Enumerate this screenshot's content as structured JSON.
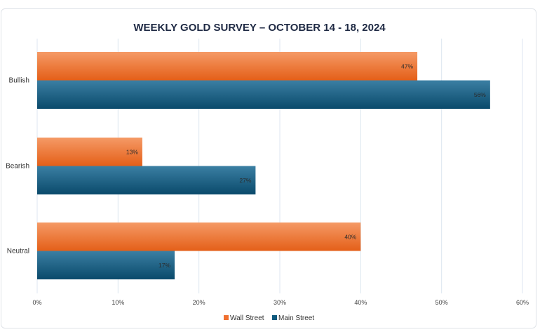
{
  "chart_data": {
    "type": "bar",
    "orientation": "horizontal",
    "title": "WEEKLY GOLD SURVEY – OCTOBER 14 - 18, 2024",
    "categories": [
      "Bullish",
      "Bearish",
      "Neutral"
    ],
    "series": [
      {
        "name": "Wall Street",
        "values": [
          47,
          13,
          40
        ],
        "color": "#f07030"
      },
      {
        "name": "Main Street",
        "values": [
          56,
          27,
          17
        ],
        "color": "#0f5a7e"
      }
    ],
    "data_labels": [
      [
        "47%",
        "13%",
        "40%"
      ],
      [
        "56%",
        "27%",
        "17%"
      ]
    ],
    "xlim": [
      0,
      60
    ],
    "xticks": [
      0,
      10,
      20,
      30,
      40,
      50,
      60
    ],
    "xtick_labels": [
      "0%",
      "10%",
      "20%",
      "30%",
      "40%",
      "50%",
      "60%"
    ],
    "grid": true,
    "legend_position": "bottom"
  }
}
